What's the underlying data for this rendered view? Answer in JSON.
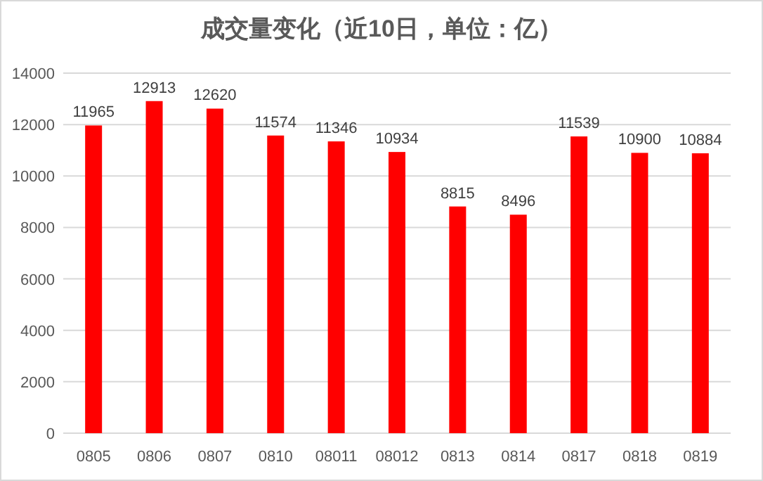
{
  "chart_data": {
    "type": "bar",
    "title": "成交量变化（近10日，单位：亿）",
    "categories": [
      "0805",
      "0806",
      "0807",
      "0810",
      "08011",
      "08012",
      "0813",
      "0814",
      "0817",
      "0818",
      "0819"
    ],
    "values": [
      11965,
      12913,
      12620,
      11574,
      11346,
      10934,
      8815,
      8496,
      11539,
      10900,
      10884
    ],
    "color": "#ff0000",
    "ylim": [
      0,
      14000
    ],
    "yticks": [
      0,
      2000,
      4000,
      6000,
      8000,
      10000,
      12000,
      14000
    ],
    "grid": "y",
    "data_labels": true
  }
}
